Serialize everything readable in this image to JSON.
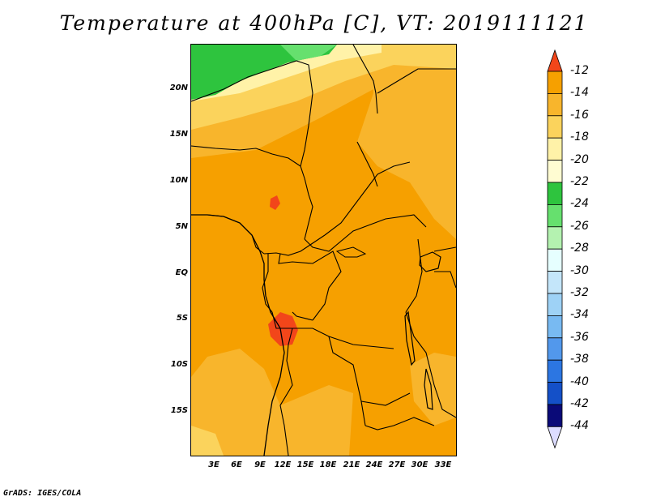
{
  "title": "Temperature at 400hPa [C], VT: 2019111121",
  "credit": "GrADS: IGES/COLA",
  "map": {
    "lat_ticks": [
      "20N",
      "15N",
      "10N",
      "5N",
      "EQ",
      "5S",
      "10S",
      "15S"
    ],
    "lon_ticks": [
      "3E",
      "6E",
      "9E",
      "12E",
      "15E",
      "18E",
      "21E",
      "24E",
      "27E",
      "30E",
      "33E"
    ]
  },
  "colorbar": {
    "labels": [
      "-12",
      "-14",
      "-16",
      "-18",
      "-20",
      "-22",
      "-24",
      "-26",
      "-28",
      "-30",
      "-32",
      "-34",
      "-36",
      "-38",
      "-40",
      "-42",
      "-44"
    ],
    "colors": [
      "#f2461a",
      "#f6a000",
      "#f8b52c",
      "#fbd35c",
      "#fff2a8",
      "#fffcd2",
      "#2ec43e",
      "#66e06e",
      "#b4f2b0",
      "#e6ffff",
      "#c4e6fa",
      "#9ed2f6",
      "#78baf2",
      "#5298ec",
      "#2c76e2",
      "#1450c8",
      "#0a0a78",
      "#dcdcff"
    ]
  }
}
